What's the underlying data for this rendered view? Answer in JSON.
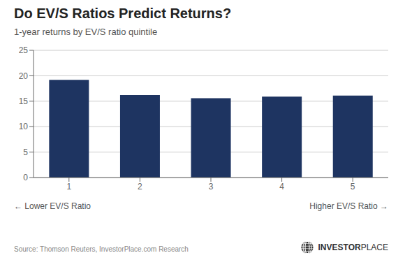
{
  "chart_data": {
    "type": "bar",
    "title": "Do EV/S Ratios Predict Returns?",
    "subtitle": "1-year returns by EV/S ratio quintile",
    "categories": [
      1,
      2,
      3,
      4,
      5
    ],
    "values": [
      19.2,
      16.2,
      15.6,
      15.9,
      16.1
    ],
    "color": "#1e3461",
    "ylim": [
      0,
      25
    ],
    "yticks": [
      0,
      5,
      10,
      15,
      20,
      25
    ],
    "grid": true,
    "xlabel_left": "← Lower EV/S Ratio",
    "xlabel_right": "Higher EV/S Ratio →",
    "source": "Source: Thomson Reuters, InvestorPlace.com Research",
    "logo_text": [
      "INVESTOR",
      "PLACE"
    ]
  }
}
